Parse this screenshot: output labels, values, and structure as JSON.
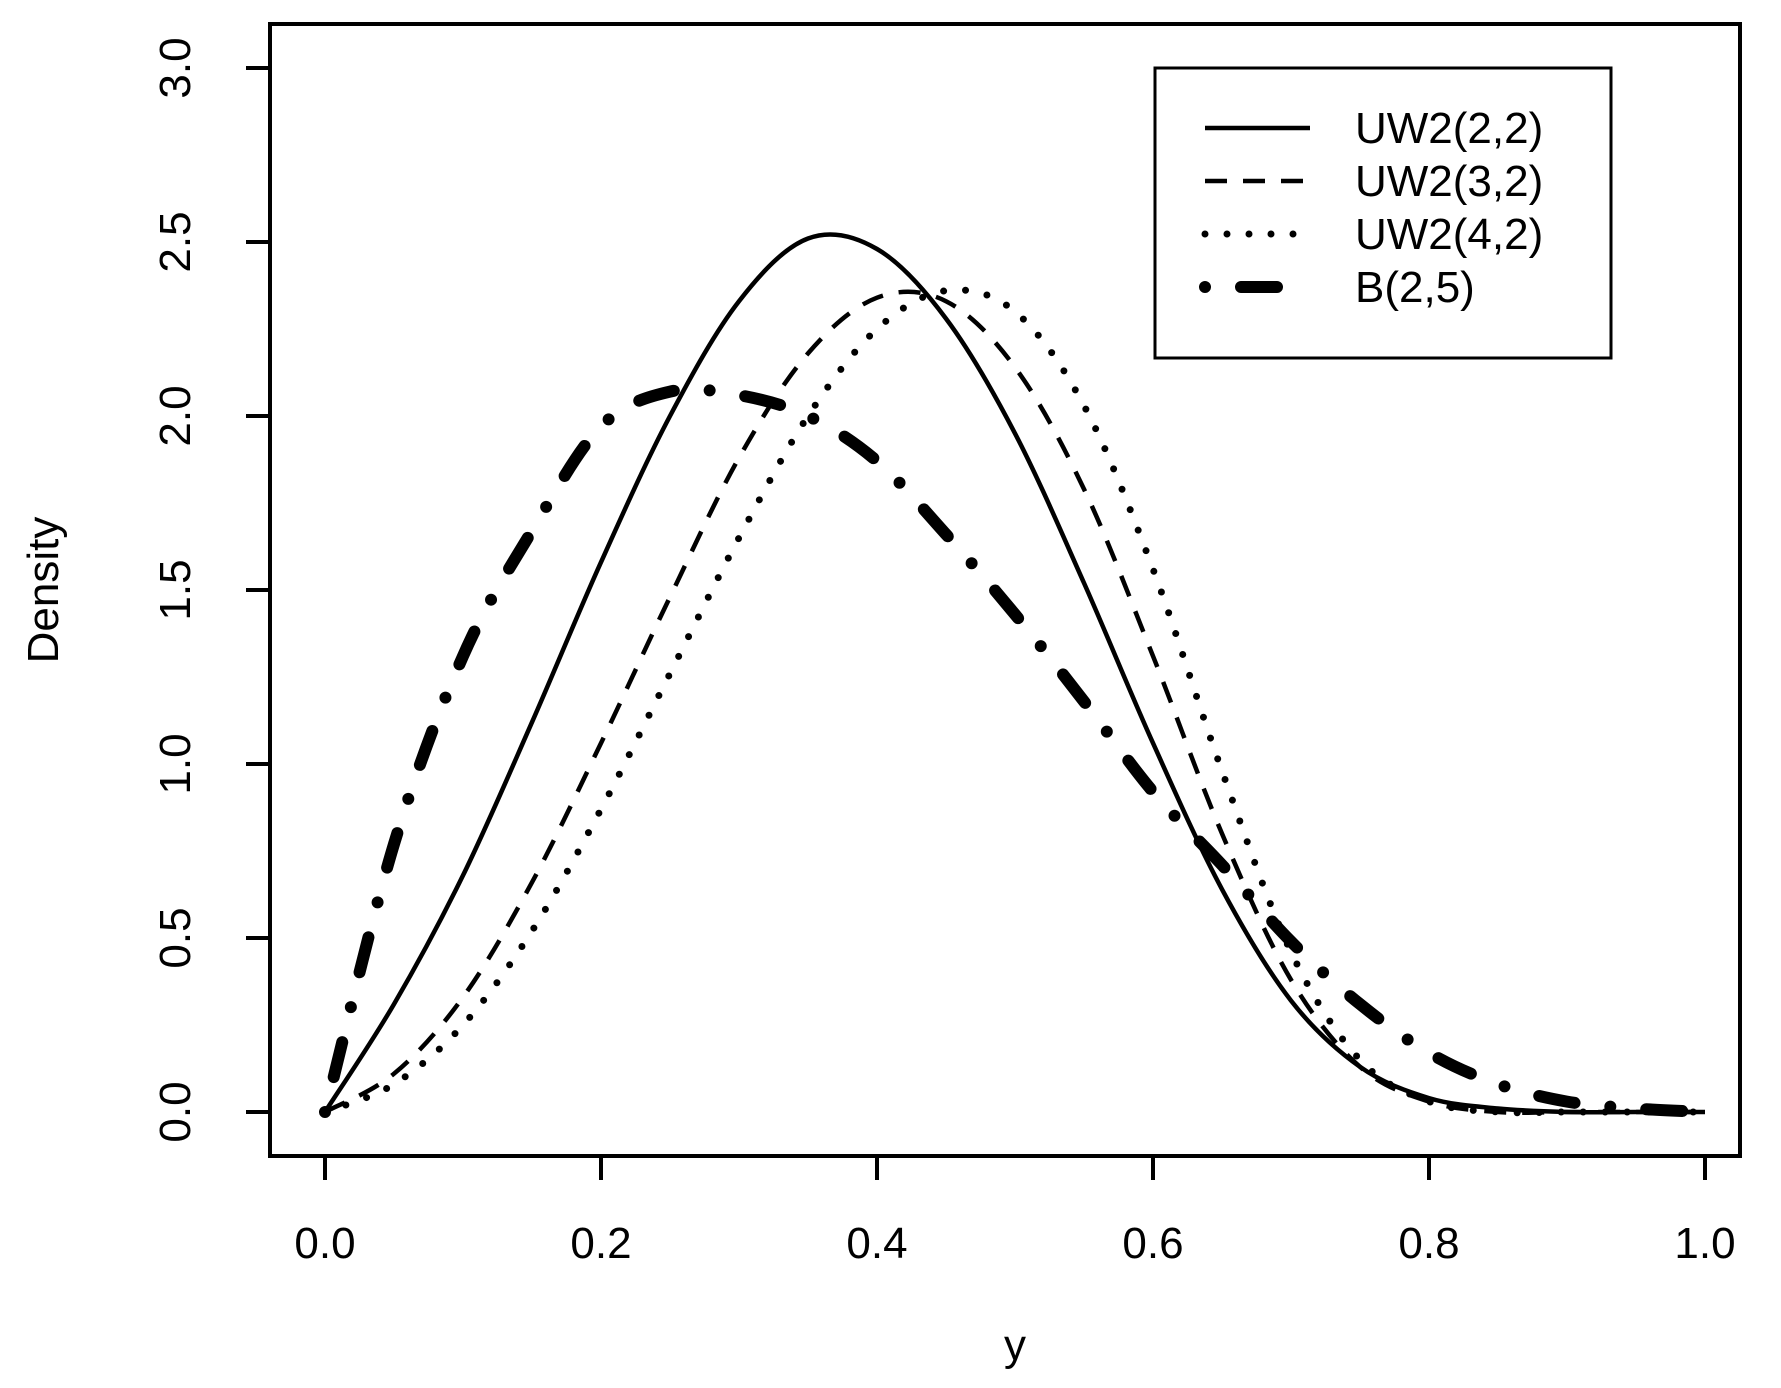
{
  "chart_data": {
    "type": "line",
    "title": "",
    "xlabel": "y",
    "ylabel": "Density",
    "xlim": [
      0,
      1
    ],
    "ylim": [
      0,
      3
    ],
    "x_ticks": [
      "0.0",
      "0.2",
      "0.4",
      "0.6",
      "0.8",
      "1.0"
    ],
    "y_ticks": [
      "0.0",
      "0.5",
      "1.0",
      "1.5",
      "2.0",
      "2.5",
      "3.0"
    ],
    "legend_position": "top-right",
    "x": [
      0.0,
      0.05,
      0.1,
      0.15,
      0.2,
      0.25,
      0.3,
      0.35,
      0.4,
      0.45,
      0.5,
      0.55,
      0.6,
      0.65,
      0.7,
      0.75,
      0.8,
      0.85,
      0.9,
      0.95,
      1.0
    ],
    "series": [
      {
        "name": "UW2(2,2)",
        "style": "solid",
        "values": [
          0.0,
          0.31,
          0.68,
          1.12,
          1.58,
          2.0,
          2.33,
          2.51,
          2.48,
          2.28,
          1.95,
          1.52,
          1.06,
          0.64,
          0.32,
          0.13,
          0.04,
          0.01,
          0.0,
          0.0,
          0.0
        ]
      },
      {
        "name": "UW2(3,2)",
        "style": "dashed",
        "values": [
          0.0,
          0.11,
          0.33,
          0.66,
          1.06,
          1.48,
          1.88,
          2.18,
          2.34,
          2.33,
          2.14,
          1.79,
          1.31,
          0.8,
          0.38,
          0.13,
          0.03,
          0.0,
          0.0,
          0.0,
          0.0
        ]
      },
      {
        "name": "UW2(4,2)",
        "style": "dotted",
        "values": [
          0.0,
          0.08,
          0.25,
          0.52,
          0.87,
          1.26,
          1.65,
          2.0,
          2.25,
          2.36,
          2.3,
          2.03,
          1.56,
          0.98,
          0.46,
          0.15,
          0.03,
          0.0,
          0.0,
          0.0,
          0.0
        ]
      },
      {
        "name": "B(2,5)",
        "style": "dotdash",
        "values": [
          0.0,
          0.77,
          1.31,
          1.67,
          1.97,
          2.07,
          2.06,
          2.0,
          1.87,
          1.66,
          1.43,
          1.18,
          0.92,
          0.71,
          0.49,
          0.31,
          0.17,
          0.08,
          0.03,
          0.01,
          0.0
        ]
      }
    ]
  }
}
